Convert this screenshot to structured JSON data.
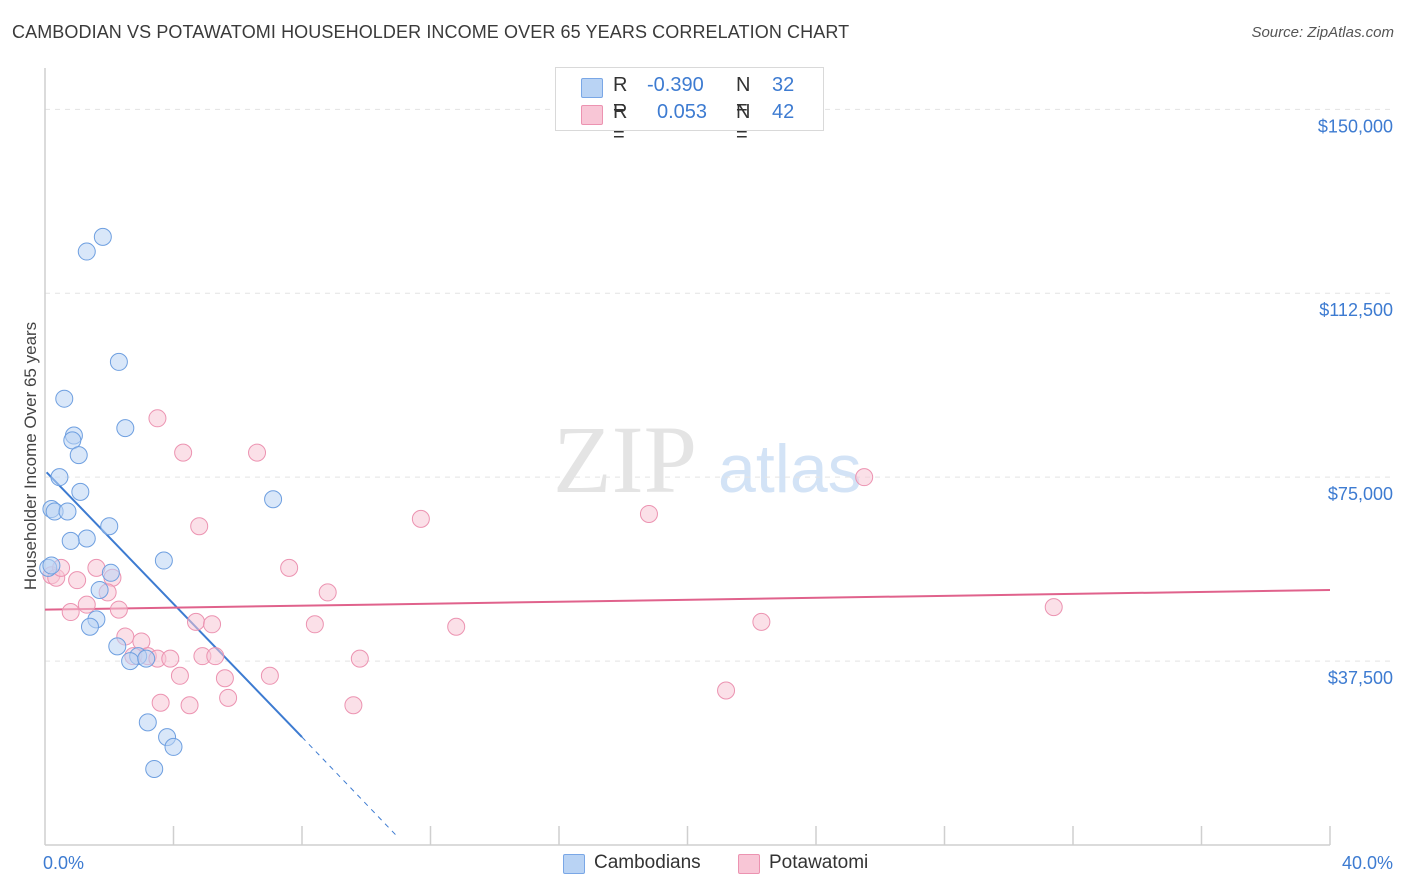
{
  "title": "CAMBODIAN VS POTAWATOMI HOUSEHOLDER INCOME OVER 65 YEARS CORRELATION CHART",
  "source": "Source: ZipAtlas.com",
  "watermark": {
    "zip": "ZIP",
    "atlas": "atlas"
  },
  "legend": {
    "rows": [
      {
        "r_label": "R =",
        "r_value": "-0.390",
        "n_label": "N =",
        "n_value": "32",
        "color": "#b9d3f4",
        "border": "#7aa7e6"
      },
      {
        "r_label": "R =",
        "r_value": "0.053",
        "n_label": "N =",
        "n_value": "42",
        "color": "#f8c6d6",
        "border": "#ec93b1"
      }
    ]
  },
  "bottom_legend": {
    "series1": "Cambodians",
    "series2": "Potawatomi"
  },
  "colors": {
    "blue": "#3d7bd1",
    "blue_fill": "#b9d3f4",
    "blue_stroke": "#6e9fe0",
    "pink": "#e0628c",
    "pink_fill": "#f8c6d6",
    "pink_stroke": "#ec93b1",
    "grid": "#e3e3e3",
    "axis": "#cfcfcf"
  },
  "chart_data": {
    "type": "scatter",
    "title": "CAMBODIAN VS POTAWATOMI HOUSEHOLDER INCOME OVER 65 YEARS CORRELATION CHART",
    "xlabel": "",
    "ylabel": "Householder Income Over 65 years",
    "xlim": [
      0,
      40
    ],
    "ylim": [
      0,
      157000
    ],
    "x_tick_labels": [
      "0.0%",
      "40.0%"
    ],
    "y_ticks": [
      37500,
      75000,
      112500,
      150000
    ],
    "y_tick_labels": [
      "$37,500",
      "$75,000",
      "$112,500",
      "$150,000"
    ],
    "series": [
      {
        "name": "Cambodians",
        "R": -0.39,
        "N": 32,
        "points": [
          [
            1.8,
            124000
          ],
          [
            1.3,
            121000
          ],
          [
            2.3,
            98500
          ],
          [
            0.6,
            91000
          ],
          [
            0.9,
            83500
          ],
          [
            2.5,
            85000
          ],
          [
            0.85,
            82500
          ],
          [
            1.05,
            79500
          ],
          [
            0.45,
            75000
          ],
          [
            1.1,
            72000
          ],
          [
            7.1,
            70500
          ],
          [
            0.2,
            68500
          ],
          [
            0.3,
            68000
          ],
          [
            0.7,
            68000
          ],
          [
            2.0,
            65000
          ],
          [
            1.3,
            62500
          ],
          [
            0.8,
            62000
          ],
          [
            3.7,
            58000
          ],
          [
            0.1,
            56500
          ],
          [
            2.05,
            55500
          ],
          [
            1.7,
            52000
          ],
          [
            1.6,
            46000
          ],
          [
            1.4,
            44500
          ],
          [
            2.25,
            40500
          ],
          [
            2.9,
            38500
          ],
          [
            2.65,
            37500
          ],
          [
            3.15,
            38000
          ],
          [
            3.2,
            25000
          ],
          [
            3.8,
            22000
          ],
          [
            4.0,
            20000
          ],
          [
            3.4,
            15500
          ],
          [
            0.2,
            57000
          ]
        ],
        "trend": {
          "x0": 0.05,
          "y0": 76000,
          "x1": 8.0,
          "y1": 22000,
          "dash_to_x": 11.0,
          "dash_to_y": 1500
        }
      },
      {
        "name": "Potawatomi",
        "R": 0.053,
        "N": 42,
        "points": [
          [
            0.2,
            55000
          ],
          [
            0.35,
            54500
          ],
          [
            0.5,
            56500
          ],
          [
            1.0,
            54000
          ],
          [
            0.8,
            47500
          ],
          [
            1.3,
            49000
          ],
          [
            1.6,
            56500
          ],
          [
            2.1,
            54500
          ],
          [
            2.3,
            48000
          ],
          [
            1.95,
            51500
          ],
          [
            2.5,
            42500
          ],
          [
            3.0,
            41500
          ],
          [
            2.75,
            38500
          ],
          [
            3.2,
            38500
          ],
          [
            3.5,
            38000
          ],
          [
            3.9,
            38000
          ],
          [
            4.2,
            34500
          ],
          [
            4.7,
            45500
          ],
          [
            4.9,
            38500
          ],
          [
            5.3,
            38500
          ],
          [
            5.2,
            45000
          ],
          [
            5.6,
            34000
          ],
          [
            3.6,
            29000
          ],
          [
            4.5,
            28500
          ],
          [
            5.7,
            30000
          ],
          [
            7.0,
            34500
          ],
          [
            8.4,
            45000
          ],
          [
            8.8,
            51500
          ],
          [
            9.8,
            38000
          ],
          [
            9.6,
            28500
          ],
          [
            3.5,
            87000
          ],
          [
            4.3,
            80000
          ],
          [
            6.6,
            80000
          ],
          [
            4.8,
            65000
          ],
          [
            7.6,
            56500
          ],
          [
            11.7,
            66500
          ],
          [
            12.8,
            44500
          ],
          [
            18.8,
            67500
          ],
          [
            21.2,
            31500
          ],
          [
            22.3,
            45500
          ],
          [
            25.5,
            75000
          ],
          [
            31.4,
            48500
          ]
        ],
        "trend": {
          "x0": 0.0,
          "y0": 48000,
          "x1": 40.0,
          "y1": 52000
        }
      }
    ]
  }
}
